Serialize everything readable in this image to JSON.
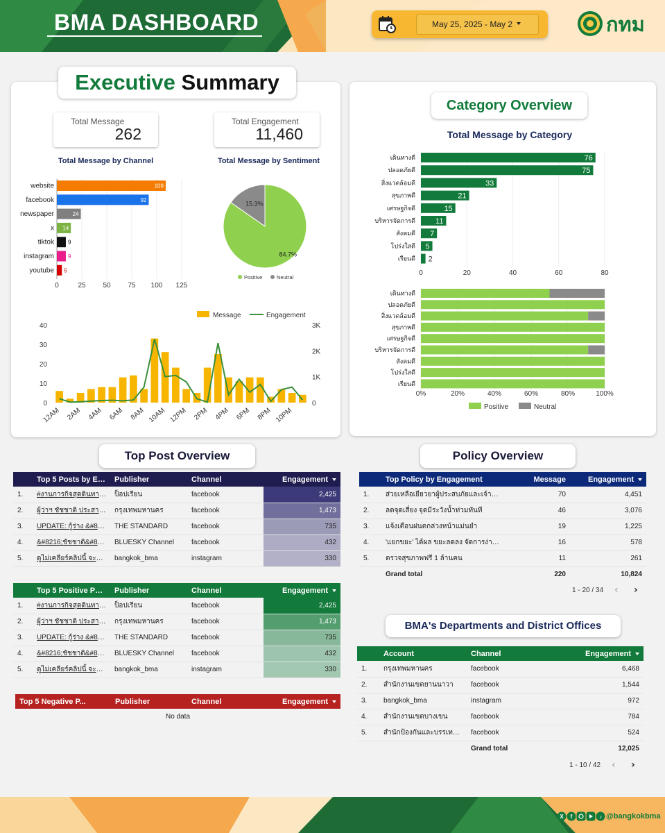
{
  "header": {
    "title": "BMA DASHBOARD",
    "date_range": "May 25, 2025 - May 2",
    "logo_text": "กทม"
  },
  "executive_summary": {
    "title_part1": "Executive",
    "title_part2": "Summary",
    "kpis": {
      "total_message_label": "Total Message",
      "total_message_value": "262",
      "total_engagement_label": "Total Engagement",
      "total_engagement_value": "11,460"
    }
  },
  "category_overview": {
    "title": "Category Overview"
  },
  "top_post_overview": {
    "title": "Top Post Overview",
    "top5_engagement": {
      "headers": [
        "Top 5 Posts by En...",
        "Publisher",
        "Channel",
        "Engagement"
      ],
      "rows": [
        {
          "rank": "1.",
          "post": "#งานการกิจสุดดินทางกาว...",
          "publisher": "ป็อปเรียน",
          "channel": "facebook",
          "engagement": "2,425"
        },
        {
          "rank": "2.",
          "post": "ผู้ว่าฯ ชัชชาติ ประสานกรม...",
          "publisher": "กรุงเทพมหานคร",
          "channel": "facebook",
          "engagement": "1,473"
        },
        {
          "rank": "3.",
          "post": "UPDATE: กู้ร่าง &#821...",
          "publisher": "THE STANDARD",
          "channel": "facebook",
          "engagement": "735"
        },
        {
          "rank": "4.",
          "post": "&#8216;ชัชชาติ&#821...",
          "publisher": "BLUESKY Channel",
          "channel": "facebook",
          "engagement": "432"
        },
        {
          "rank": "5.",
          "post": "ดูไม่เคลียร์คลิปนี้ จะมาบอ...",
          "publisher": "bangkok_bma",
          "channel": "instagram",
          "engagement": "330"
        }
      ]
    },
    "top5_positive": {
      "headers": [
        "Top 5 Positive Po...",
        "Publisher",
        "Channel",
        "Engagement"
      ],
      "rows": [
        {
          "rank": "1.",
          "post": "#งานการกิจสุดดินทางกาว...",
          "publisher": "ป็อปเรียน",
          "channel": "facebook",
          "engagement": "2,425"
        },
        {
          "rank": "2.",
          "post": "ผู้ว่าฯ ชัชชาติ ประสานกรม...",
          "publisher": "กรุงเทพมหานคร",
          "channel": "facebook",
          "engagement": "1,473"
        },
        {
          "rank": "3.",
          "post": "UPDATE: กู้ร่าง &#821...",
          "publisher": "THE STANDARD",
          "channel": "facebook",
          "engagement": "735"
        },
        {
          "rank": "4.",
          "post": "&#8216;ชัชชาติ&#821...",
          "publisher": "BLUESKY Channel",
          "channel": "facebook",
          "engagement": "432"
        },
        {
          "rank": "5.",
          "post": "ดูไม่เคลียร์คลิปนี้ จะมาบอ...",
          "publisher": "bangkok_bma",
          "channel": "instagram",
          "engagement": "330"
        }
      ]
    },
    "top5_negative": {
      "headers": [
        "Top 5 Negative P...",
        "Publisher",
        "Channel",
        "Engagement"
      ],
      "empty_text": "No data"
    }
  },
  "policy_overview": {
    "title": "Policy Overview",
    "headers": [
      "Top Policy by Engagement",
      "Message",
      "Engagement"
    ],
    "rows": [
      {
        "rank": "1.",
        "policy": "ส่วยเหลือเยียวยาผู้ประสบภัยและเจ้าหน้า...",
        "message": "70",
        "engagement": "4,451"
      },
      {
        "rank": "2.",
        "policy": "ลดจุดเสี่ยง จุดมีระวังน้ำท่วมทันที",
        "message": "46",
        "engagement": "3,076"
      },
      {
        "rank": "3.",
        "policy": "แจ้งเตือนฝนตกล่วงหน้าแม่นยำ",
        "message": "19",
        "engagement": "1,225"
      },
      {
        "rank": "4.",
        "policy": "'แยกขยะ' ได้ผล ขยะลดลง จัดการง่ายขึ้น",
        "message": "16",
        "engagement": "578"
      },
      {
        "rank": "5.",
        "policy": "ตรวจสุขภาพฟรี 1 ล้านคน",
        "message": "11",
        "engagement": "261"
      }
    ],
    "grand_total_label": "Grand total",
    "grand_total_message": "220",
    "grand_total_engagement": "10,824",
    "pager": "1 - 20 / 34"
  },
  "departments": {
    "title": "BMA's Departments and District Offices",
    "headers": [
      "Account",
      "Channel",
      "Engagement"
    ],
    "rows": [
      {
        "rank": "1.",
        "account": "กรุงเทพมหานคร",
        "channel": "facebook",
        "engagement": "6,468"
      },
      {
        "rank": "2.",
        "account": "สำนักงานเขตยานนาวา",
        "channel": "facebook",
        "engagement": "1,544"
      },
      {
        "rank": "3.",
        "account": "bangkok_bma",
        "channel": "instagram",
        "engagement": "972"
      },
      {
        "rank": "4.",
        "account": "สำนักงานเขตบางเขน",
        "channel": "facebook",
        "engagement": "784"
      },
      {
        "rank": "5.",
        "account": "สำนักป้องกันและบรรเทาสาธาร...",
        "channel": "facebook",
        "engagement": "524"
      }
    ],
    "grand_total_label": "Grand total",
    "grand_total_engagement": "12,025",
    "pager": "1 - 10 / 42"
  },
  "footer": {
    "social_handle": "@bangkokbma"
  },
  "colors": {
    "green_dark": "#127a3a",
    "green_mid": "#4b9a44",
    "orange": "#f6a84c",
    "gold": "#f7b731",
    "navy": "#1f1d4f",
    "red": "#b52220",
    "light_green": "#8fd14f"
  },
  "icons": [
    "calendar-icon",
    "chevron-left-icon",
    "chevron-right-icon",
    "sort-down-icon",
    "x-icon",
    "facebook-icon",
    "instagram-icon",
    "youtube-icon",
    "tiktok-icon"
  ],
  "chart_data": [
    {
      "type": "bar",
      "title": "Total Message by Channel",
      "orientation": "horizontal",
      "categories": [
        "website",
        "facebook",
        "newspaper",
        "x",
        "tiktok",
        "instagram",
        "youtube"
      ],
      "values": [
        109,
        92,
        24,
        14,
        9,
        9,
        5
      ],
      "colors": [
        "#f57c00",
        "#1a73e8",
        "#7f7f7f",
        "#7cb342",
        "#111111",
        "#e91e8c",
        "#d50000"
      ],
      "xlim": [
        0,
        125
      ],
      "xticks": [
        0,
        25,
        50,
        75,
        100,
        125
      ]
    },
    {
      "type": "pie",
      "title": "Total Message by Sentiment",
      "categories": [
        "Positive",
        "Neutral"
      ],
      "values": [
        84.7,
        15.3
      ],
      "labels": [
        "84.7%",
        "15.3%"
      ],
      "colors": [
        "#8fd14f",
        "#8a8a8a"
      ],
      "legend": "bottom"
    },
    {
      "type": "bar",
      "title": "",
      "series": [
        {
          "name": "Message",
          "kind": "bar",
          "axis": "left",
          "color": "#f7b500",
          "values": [
            6,
            2,
            5,
            7,
            8,
            8,
            13,
            14,
            7,
            33,
            26,
            18,
            7,
            5,
            18,
            25,
            13,
            11,
            13,
            13,
            3,
            7,
            5,
            4
          ]
        },
        {
          "name": "Engagement",
          "kind": "line",
          "axis": "right",
          "color": "#3a8f3a",
          "values": [
            150,
            20,
            30,
            60,
            80,
            90,
            70,
            100,
            600,
            2450,
            1000,
            1050,
            800,
            150,
            20,
            2300,
            300,
            900,
            400,
            700,
            50,
            500,
            600,
            100
          ]
        }
      ],
      "x": [
        "12AM",
        "1AM",
        "2AM",
        "3AM",
        "4AM",
        "5AM",
        "6AM",
        "7AM",
        "8AM",
        "9AM",
        "10AM",
        "11AM",
        "12PM",
        "1PM",
        "2PM",
        "3PM",
        "4PM",
        "5PM",
        "6PM",
        "7PM",
        "8PM",
        "9PM",
        "10PM",
        "11PM"
      ],
      "xticks": [
        "12AM",
        "2AM",
        "4AM",
        "6AM",
        "8AM",
        "10AM",
        "12PM",
        "2PM",
        "4PM",
        "6PM",
        "8PM",
        "10PM"
      ],
      "ylim_left": [
        0,
        40
      ],
      "yticks_left": [
        "0",
        "10",
        "20",
        "30",
        "40"
      ],
      "ylim_right": [
        0,
        3000
      ],
      "yticks_right": [
        "0",
        "1K",
        "2K",
        "3K"
      ],
      "legend": "top"
    },
    {
      "type": "bar",
      "title": "Total Message by Category",
      "orientation": "horizontal",
      "categories": [
        "เดินทางดี",
        "ปลอดภัยดี",
        "สิ่งแวดล้อมดี",
        "สุขภาพดี",
        "เศรษฐกิจดี",
        "บริหารจัดการดี",
        "สังคมดี",
        "โปร่งใสดี",
        "เรียนดี"
      ],
      "values": [
        76,
        75,
        33,
        21,
        15,
        11,
        7,
        5,
        2
      ],
      "color": "#127a3a",
      "xlim": [
        0,
        80
      ],
      "xticks": [
        0,
        20,
        40,
        60,
        80
      ]
    },
    {
      "type": "bar",
      "title": "",
      "orientation": "horizontal",
      "stacked": "100%",
      "categories": [
        "เดินทางดี",
        "ปลอดภัยดี",
        "สิ่งแวดล้อมดี",
        "สุขภาพดี",
        "เศรษฐกิจดี",
        "บริหารจัดการดี",
        "สังคมดี",
        "โปร่งใสดี",
        "เรียนดี"
      ],
      "series": [
        {
          "name": "Positive",
          "color": "#8fd14f",
          "values": [
            70,
            100,
            91,
            100,
            100,
            91,
            100,
            100,
            100
          ]
        },
        {
          "name": "Neutral",
          "color": "#8a8a8a",
          "values": [
            30,
            0,
            9,
            0,
            0,
            9,
            0,
            0,
            0
          ]
        }
      ],
      "xticks": [
        "0%",
        "20%",
        "40%",
        "60%",
        "80%",
        "100%"
      ],
      "legend": "bottom"
    }
  ]
}
